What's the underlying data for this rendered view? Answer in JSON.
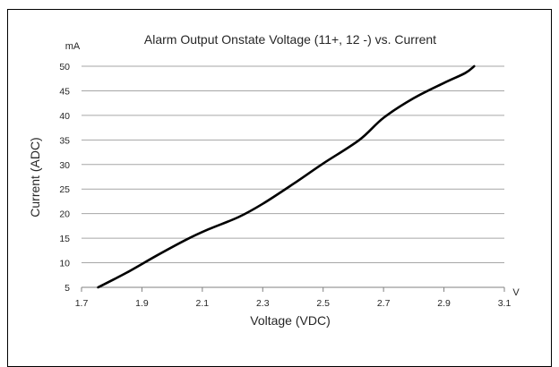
{
  "chart_data": {
    "type": "line",
    "title": "Alarm Output Onstate Voltage (11+, 12 -) vs. Current",
    "xlabel": "Voltage (VDC)",
    "ylabel": "Current (ADC)",
    "x_unit": "V",
    "y_unit": "mA",
    "xlim": [
      1.7,
      3.1
    ],
    "ylim": [
      5,
      50
    ],
    "x_ticks": [
      "1.7",
      "1.9",
      "2.1",
      "2.3",
      "2.5",
      "2.7",
      "2.9",
      "3.1"
    ],
    "y_ticks": [
      "5",
      "10",
      "15",
      "20",
      "25",
      "30",
      "35",
      "40",
      "45",
      "50"
    ],
    "grid": true,
    "line_color": "#000000",
    "grid_color": "#a6a6a6",
    "series": [
      {
        "x": [
          1.755,
          1.85,
          1.95,
          2.05,
          2.12,
          2.22,
          2.3,
          2.4,
          2.5,
          2.62,
          2.7,
          2.8,
          2.9,
          2.97,
          3.0
        ],
        "y": [
          5,
          8,
          11.5,
          14.8,
          16.8,
          19.3,
          22,
          26,
          30.2,
          35,
          39.5,
          43.5,
          46.6,
          48.6,
          50
        ]
      }
    ]
  }
}
